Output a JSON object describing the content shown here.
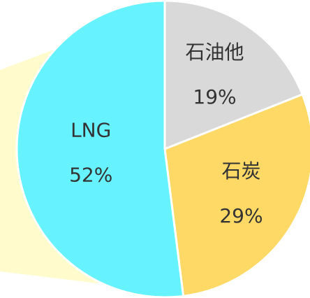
{
  "chart_data": {
    "type": "pie",
    "categories": [
      "石油他",
      "石炭",
      "LNG"
    ],
    "values": [
      19,
      29,
      52
    ],
    "value_labels": [
      "19%",
      "29%",
      "52%"
    ],
    "colors": [
      "#d9d9d9",
      "#ffd966",
      "#66f2ff"
    ]
  }
}
